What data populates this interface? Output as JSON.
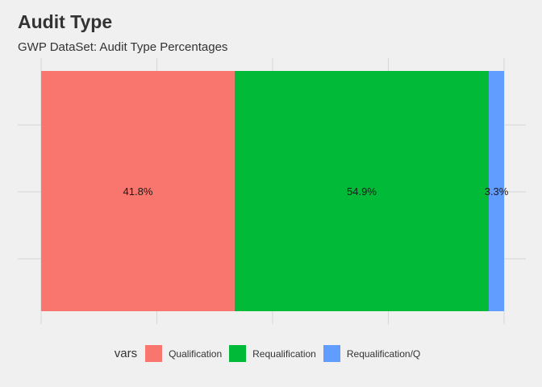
{
  "header": {
    "title": "Audit Type",
    "subtitle": "GWP DataSet: Audit Type Percentages"
  },
  "legend": {
    "title": "vars",
    "items": [
      {
        "label": "Qualification",
        "color": "#F8766D"
      },
      {
        "label": "Requalification",
        "color": "#00BA38"
      },
      {
        "label": "Requalification/Q",
        "color": "#619CFF"
      }
    ]
  },
  "chart_data": {
    "type": "bar",
    "stacked": true,
    "orientation": "horizontal",
    "title": "Audit Type",
    "subtitle": "GWP DataSet: Audit Type Percentages",
    "xlabel": "",
    "ylabel": "",
    "xlim": [
      0,
      1
    ],
    "grid": true,
    "legend_position": "bottom",
    "legend_title": "vars",
    "series": [
      {
        "name": "Qualification",
        "value": 0.418,
        "label": "41.8%",
        "color": "#F8766D"
      },
      {
        "name": "Requalification",
        "value": 0.549,
        "label": "54.9%",
        "color": "#00BA38"
      },
      {
        "name": "Requalification/Q",
        "value": 0.033,
        "label": "3.3%",
        "color": "#619CFF"
      }
    ]
  }
}
